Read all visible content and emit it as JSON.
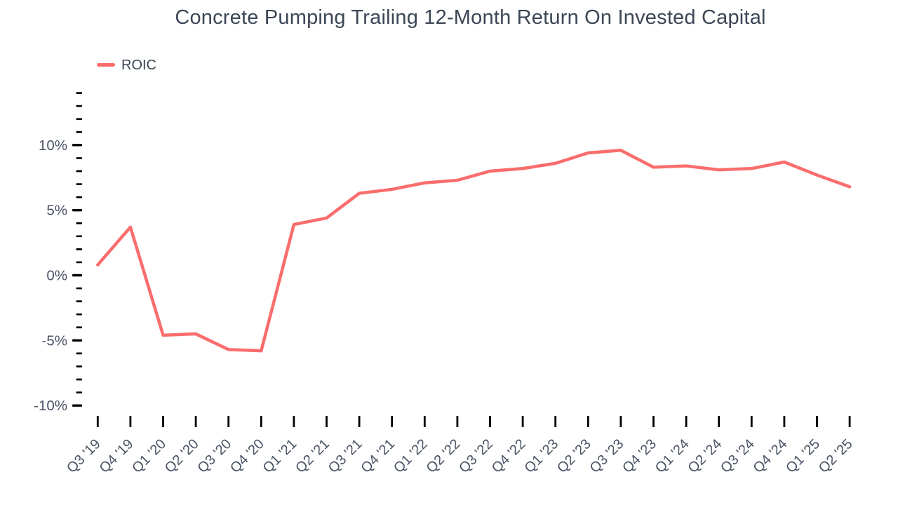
{
  "title": "Concrete Pumping Trailing 12-Month Return On Invested Capital",
  "legend": {
    "items": [
      {
        "label": "ROIC"
      }
    ]
  },
  "colors": {
    "line": "#FA6D6D",
    "tick": "#000000",
    "axis_label": "#4A5365",
    "title_text": "#3C4656"
  },
  "y_axis": {
    "tick_labels": [
      "10%",
      "5%",
      "0%",
      "-5%",
      "-10%"
    ]
  },
  "chart_data": {
    "type": "line",
    "title": "Concrete Pumping Trailing 12-Month Return On Invested Capital",
    "categories": [
      "Q3 '19",
      "Q4 '19",
      "Q1 '20",
      "Q2 '20",
      "Q3 '20",
      "Q4 '20",
      "Q1 '21",
      "Q2 '21",
      "Q3 '21",
      "Q4 '21",
      "Q1 '22",
      "Q2 '22",
      "Q3 '22",
      "Q4 '22",
      "Q1 '23",
      "Q2 '23",
      "Q3 '23",
      "Q4 '23",
      "Q1 '24",
      "Q2 '24",
      "Q3 '24",
      "Q4 '24",
      "Q1 '25",
      "Q2 '25"
    ],
    "series": [
      {
        "name": "ROIC",
        "color": "#FA6D6D",
        "values": [
          0.8,
          3.7,
          -4.6,
          -4.5,
          -5.7,
          -5.8,
          3.9,
          4.4,
          6.3,
          6.6,
          7.1,
          7.3,
          8.0,
          8.2,
          8.6,
          9.4,
          9.6,
          8.3,
          8.4,
          8.1,
          8.2,
          8.7,
          7.7,
          6.8
        ]
      }
    ],
    "xlabel": "",
    "ylabel": "",
    "ylim": [
      -10,
      14
    ],
    "ytick_major": [
      10,
      5,
      0,
      -5,
      -10
    ],
    "ytick_minor_step": 1,
    "ytick_suffix": "%",
    "grid": false,
    "legend_position": "top-left"
  }
}
